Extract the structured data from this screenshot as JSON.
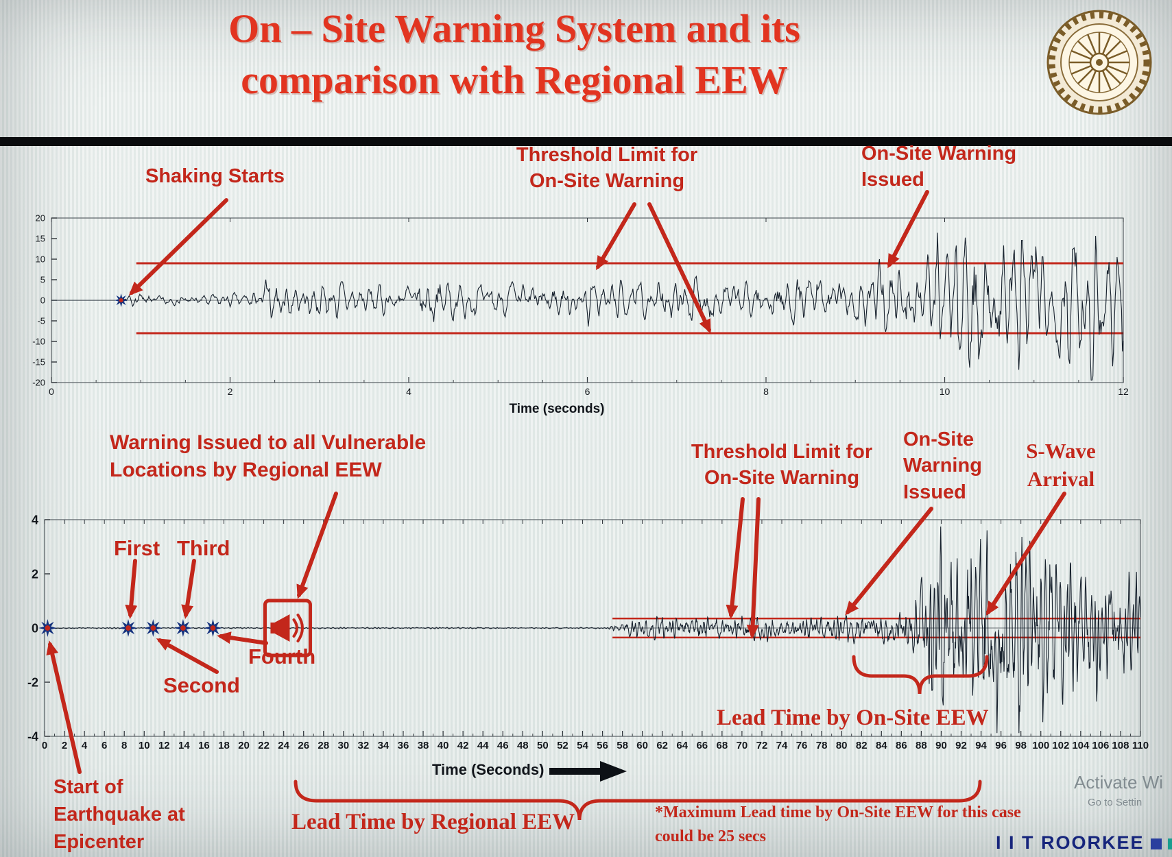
{
  "slide": {
    "title_line1": "On – Site Warning System and its",
    "title_line2": "comparison with Regional EEW"
  },
  "annotations": {
    "shaking_starts": "Shaking Starts",
    "threshold_top": "Threshold Limit for\nOn-Site Warning",
    "onsite_issued_top": "On-Site Warning\nIssued",
    "regional_warning": "Warning Issued to all Vulnerable\nLocations by Regional EEW",
    "threshold_bottom": "Threshold Limit for\nOn-Site Warning",
    "onsite_issued_bottom": "On-Site\nWarning\nIssued",
    "s_wave_arrival": "S-Wave\nArrival",
    "station_first": "First",
    "station_second": "Second",
    "station_third": "Third",
    "station_fourth": "Fourth",
    "epicenter": "Start of\nEarthquake at\nEpicenter",
    "lead_time_onsite": "Lead Time by On-Site EEW",
    "lead_time_regional": "Lead Time by Regional EEW",
    "footnote": "*Maximum Lead time by On-Site EEW for this case\ncould be 25 secs"
  },
  "footer": {
    "brand": "I I T ROORKEE",
    "watermark_line1": "Activate Wi",
    "watermark_line2": "Go to Settin"
  },
  "colors": {
    "accent_red": "#c3271b",
    "title_red": "#e23420",
    "waveform": "#18222e",
    "threshold": "#c3271b",
    "marker_blue": "#16337e",
    "brand_navy": "#16257c",
    "brand_blue_square": "#2a3f9e",
    "brand_teal_square": "#1a9d8f"
  },
  "chart_data": [
    {
      "type": "line",
      "name": "on-site single-station seismogram",
      "xlabel": "Time (seconds)",
      "ylabel": "",
      "xlim": [
        0,
        12
      ],
      "ylim": [
        -20,
        20
      ],
      "xticks": [
        0,
        2,
        4,
        6,
        8,
        10,
        12
      ],
      "yticks": [
        20,
        15,
        10,
        5,
        0,
        -5,
        -10,
        -15,
        -20
      ],
      "grid": false,
      "threshold_upper": 9,
      "threshold_lower": -8,
      "threshold_x_start": 0.95,
      "onset_x": 0.78,
      "warning_issued_x": 9.4,
      "envelope": [
        [
          0,
          0
        ],
        [
          0.74,
          0
        ],
        [
          0.8,
          1.3
        ],
        [
          1.4,
          1.0
        ],
        [
          2.2,
          1.4
        ],
        [
          2.45,
          4.5
        ],
        [
          2.8,
          2.8
        ],
        [
          3.2,
          3.8
        ],
        [
          3.6,
          2.8
        ],
        [
          4.0,
          3.6
        ],
        [
          4.4,
          4.4
        ],
        [
          4.8,
          2.9
        ],
        [
          5.2,
          3.8
        ],
        [
          5.6,
          3.0
        ],
        [
          6.0,
          4.4
        ],
        [
          6.4,
          3.2
        ],
        [
          6.8,
          3.9
        ],
        [
          7.2,
          4.8
        ],
        [
          7.6,
          3.3
        ],
        [
          8.0,
          3.9
        ],
        [
          8.4,
          4.4
        ],
        [
          8.8,
          5.2
        ],
        [
          9.1,
          6.0
        ],
        [
          9.4,
          9.0
        ],
        [
          9.7,
          7.0
        ],
        [
          10.0,
          11.0
        ],
        [
          10.3,
          15.5
        ],
        [
          10.6,
          11.5
        ],
        [
          10.9,
          16.5
        ],
        [
          11.2,
          12.0
        ],
        [
          11.5,
          15.5
        ],
        [
          11.8,
          13.0
        ],
        [
          12.0,
          14.5
        ]
      ],
      "noise_seed": 7,
      "sample_dt": 0.01,
      "osc_freq": 9
    },
    {
      "type": "line",
      "name": "regional seismogram with P-wave detections",
      "xlabel": "Time (Seconds)",
      "ylabel": "",
      "xlim": [
        0,
        110
      ],
      "ylim": [
        -4,
        4
      ],
      "xtick_step": 2,
      "yticks": [
        4,
        2,
        0,
        -2,
        -4
      ],
      "grid": false,
      "threshold_upper": 0.35,
      "threshold_lower": -0.35,
      "threshold_x_start": 57,
      "p_wave_detection_x": [
        0.3,
        8.4,
        10.9,
        13.9,
        16.9
      ],
      "regional_warning_x": 24.4,
      "onsite_warning_issued_x": 80.5,
      "s_wave_arrival_x": 88,
      "max_onsite_lead_time_secs": 25,
      "envelope": [
        [
          0,
          0.02
        ],
        [
          56.5,
          0.02
        ],
        [
          58,
          0.18
        ],
        [
          60,
          0.28
        ],
        [
          62,
          0.33
        ],
        [
          64,
          0.28
        ],
        [
          66,
          0.35
        ],
        [
          68,
          0.3
        ],
        [
          70,
          0.42
        ],
        [
          72,
          0.33
        ],
        [
          74,
          0.3
        ],
        [
          76,
          0.36
        ],
        [
          78,
          0.32
        ],
        [
          80,
          0.4
        ],
        [
          82,
          0.42
        ],
        [
          84,
          0.48
        ],
        [
          86,
          0.55
        ],
        [
          87,
          0.75
        ],
        [
          88,
          1.3
        ],
        [
          89,
          2.3
        ],
        [
          90,
          3.3
        ],
        [
          91,
          2.2
        ],
        [
          92,
          3.0
        ],
        [
          93,
          3.4
        ],
        [
          94,
          2.4
        ],
        [
          95,
          3.0
        ],
        [
          96,
          2.0
        ],
        [
          97,
          2.7
        ],
        [
          98,
          3.1
        ],
        [
          99,
          2.1
        ],
        [
          100,
          2.5
        ],
        [
          101,
          2.9
        ],
        [
          102,
          1.9
        ],
        [
          103,
          2.3
        ],
        [
          104,
          1.7
        ],
        [
          105,
          2.1
        ],
        [
          106,
          1.5
        ],
        [
          107,
          1.9
        ],
        [
          108,
          1.3
        ],
        [
          109,
          1.6
        ],
        [
          110,
          1.1
        ]
      ],
      "noise_seed": 12,
      "sample_dt": 0.05,
      "osc_freq": 2.3
    }
  ]
}
